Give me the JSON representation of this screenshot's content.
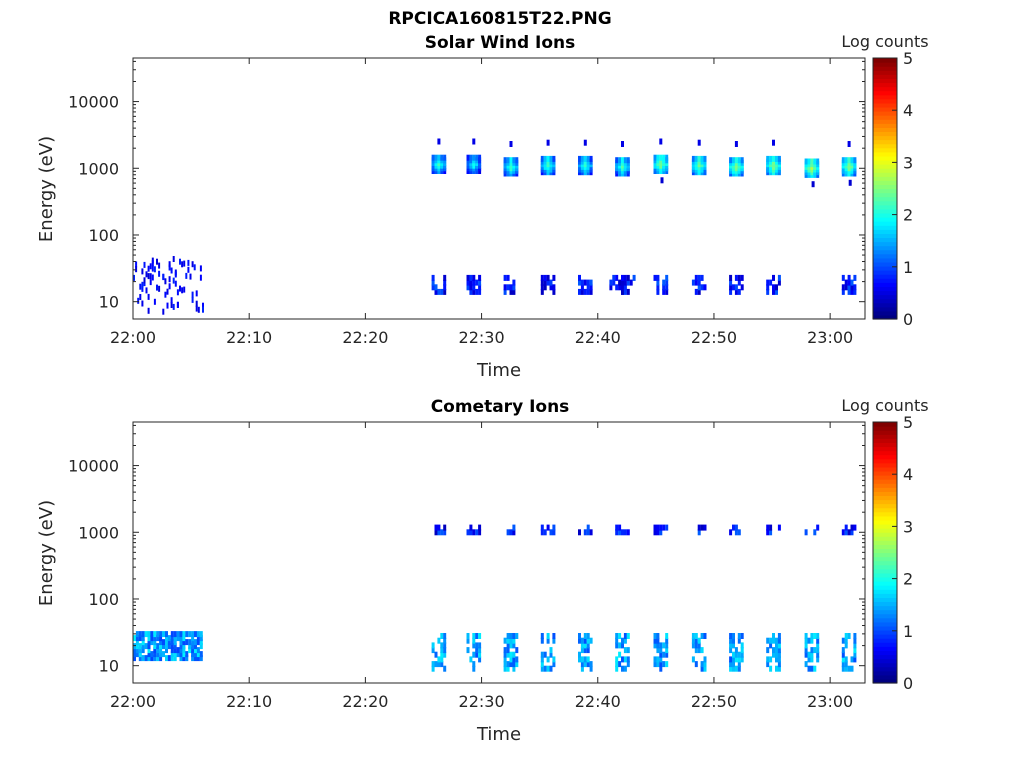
{
  "figure": {
    "title": "RPCICA160815T22.PNG"
  },
  "chart_data": [
    {
      "type": "heatmap",
      "title": "Solar Wind Ions",
      "xlabel": "Time",
      "ylabel": "Energy (eV)",
      "x_ticks": [
        "22:00",
        "22:10",
        "22:20",
        "22:30",
        "22:40",
        "22:50",
        "23:00"
      ],
      "x_range_minutes": [
        0,
        63
      ],
      "y_ticks": [
        "10",
        "100",
        "1000",
        "10000"
      ],
      "y_scale": "log",
      "y_range_eV": [
        5.5,
        45000
      ],
      "colorbar": {
        "label": "Log counts",
        "ticks": [
          "0",
          "1",
          "2",
          "3",
          "4",
          "5"
        ],
        "range": [
          0,
          5
        ],
        "colormap": "jet"
      },
      "features": [
        {
          "kind": "noise",
          "t_start": 0,
          "t_end": 6,
          "e_min": 7,
          "e_max": 45,
          "level": 0.4
        },
        {
          "kind": "peak",
          "t": 26.2,
          "e_center": 1200,
          "level": 2.0
        },
        {
          "kind": "peak",
          "t": 29.2,
          "e_center": 1200,
          "level": 1.8
        },
        {
          "kind": "peak",
          "t": 32.4,
          "e_center": 1100,
          "level": 2.1
        },
        {
          "kind": "peak",
          "t": 35.6,
          "e_center": 1150,
          "level": 2.1
        },
        {
          "kind": "peak",
          "t": 38.8,
          "e_center": 1150,
          "level": 2.0
        },
        {
          "kind": "peak",
          "t": 42.0,
          "e_center": 1100,
          "level": 2.1
        },
        {
          "kind": "peak",
          "t": 45.3,
          "e_center": 1200,
          "level": 2.4
        },
        {
          "kind": "peak",
          "t": 48.6,
          "e_center": 1150,
          "level": 2.3
        },
        {
          "kind": "peak",
          "t": 51.8,
          "e_center": 1100,
          "level": 2.4
        },
        {
          "kind": "peak",
          "t": 55.0,
          "e_center": 1150,
          "level": 2.4
        },
        {
          "kind": "peak",
          "t": 58.3,
          "e_center": 1050,
          "level": 2.5
        },
        {
          "kind": "peak",
          "t": 61.5,
          "e_center": 1100,
          "level": 2.4
        },
        {
          "kind": "low_band",
          "times": [
            26.2,
            29.2,
            32.4,
            35.6,
            38.8,
            41.5,
            42.5,
            45.3,
            48.6,
            51.8,
            55.0,
            61.5
          ],
          "e_min": 14,
          "e_max": 26,
          "level": 0.3
        }
      ]
    },
    {
      "type": "heatmap",
      "title": "Cometary Ions",
      "xlabel": "Time",
      "ylabel": "Energy (eV)",
      "x_ticks": [
        "22:00",
        "22:10",
        "22:20",
        "22:30",
        "22:40",
        "22:50",
        "23:00"
      ],
      "x_range_minutes": [
        0,
        63
      ],
      "y_ticks": [
        "10",
        "100",
        "1000",
        "10000"
      ],
      "y_scale": "log",
      "y_range_eV": [
        5.5,
        45000
      ],
      "colorbar": {
        "label": "Log counts",
        "ticks": [
          "0",
          "1",
          "2",
          "3",
          "4",
          "5"
        ],
        "range": [
          0,
          5
        ],
        "colormap": "jet"
      },
      "features": [
        {
          "kind": "band",
          "t_start": 0,
          "t_end": 6,
          "e_min": 13,
          "e_max": 30,
          "level": 1.2
        },
        {
          "kind": "low_band",
          "times": [
            26.2,
            29.2,
            32.4,
            35.6,
            38.8,
            42.0,
            45.3,
            48.6,
            51.8,
            55.0,
            58.3,
            61.5
          ],
          "e_min": 9,
          "e_max": 32,
          "level": 1.0
        },
        {
          "kind": "high_band",
          "times": [
            26.2,
            29.2,
            32.4,
            35.6,
            38.8,
            42.0,
            45.3,
            48.6,
            51.8,
            55.0,
            58.3,
            61.5
          ],
          "e_min": 1000,
          "e_max": 1300,
          "level": 0.3
        }
      ]
    }
  ]
}
